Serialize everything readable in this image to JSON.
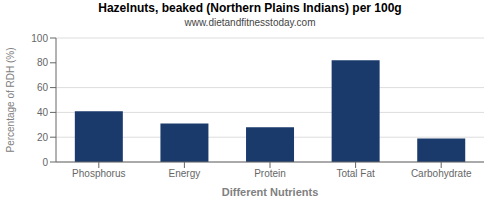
{
  "chart_data": {
    "type": "bar",
    "title": "Hazelnuts, beaked (Northern Plains Indians) per 100g",
    "subtitle": "www.dietandfitnesstoday.com",
    "xlabel": "Different Nutrients",
    "ylabel": "Percentage of RDH (%)",
    "categories": [
      "Phosphorus",
      "Energy",
      "Protein",
      "Total Fat",
      "Carbohydrate"
    ],
    "values": [
      41,
      31,
      28,
      82,
      19
    ],
    "color": "#1a3a6b",
    "ylim": [
      0,
      100
    ],
    "yticks": [
      0,
      20,
      40,
      60,
      80,
      100
    ],
    "grid": true
  }
}
